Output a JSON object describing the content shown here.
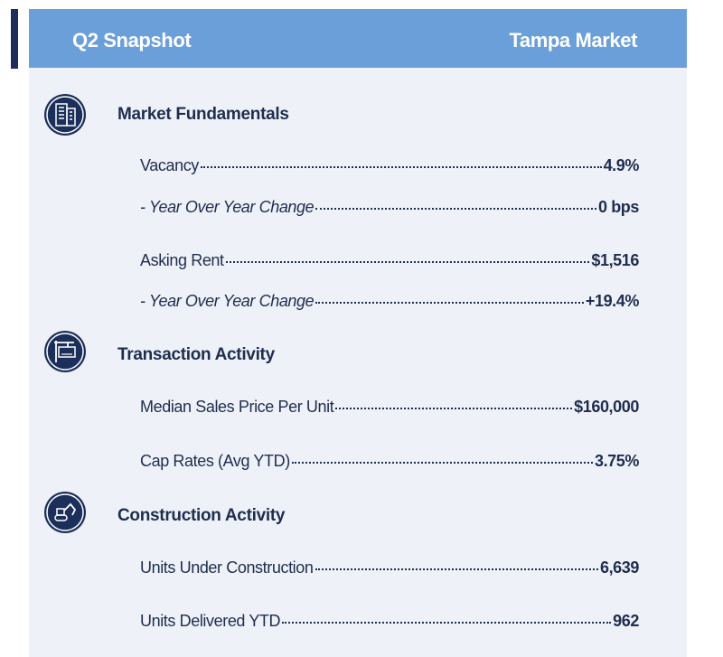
{
  "header": {
    "left": "Q2 Snapshot",
    "right": "Tampa Market"
  },
  "sections": [
    {
      "title": "Market Fundamentals",
      "rows": [
        {
          "label": "Vacancy",
          "value": "4.9%"
        },
        {
          "label": "- Year Over Year Change",
          "value": "0 bps",
          "italic": true
        },
        {
          "label": "Asking Rent",
          "value": "$1,516"
        },
        {
          "label": "- Year Over Year Change",
          "value": "+19.4%",
          "italic": true
        }
      ]
    },
    {
      "title": "Transaction Activity",
      "rows": [
        {
          "label": "Median Sales Price Per Unit",
          "value": "$160,000"
        },
        {
          "label": "Cap Rates (Avg YTD)",
          "value": "3.75%"
        }
      ]
    },
    {
      "title": "Construction Activity",
      "rows": [
        {
          "label": "Units Under Construction",
          "value": "6,639"
        },
        {
          "label": "Units Delivered YTD",
          "value": "962"
        }
      ]
    }
  ]
}
